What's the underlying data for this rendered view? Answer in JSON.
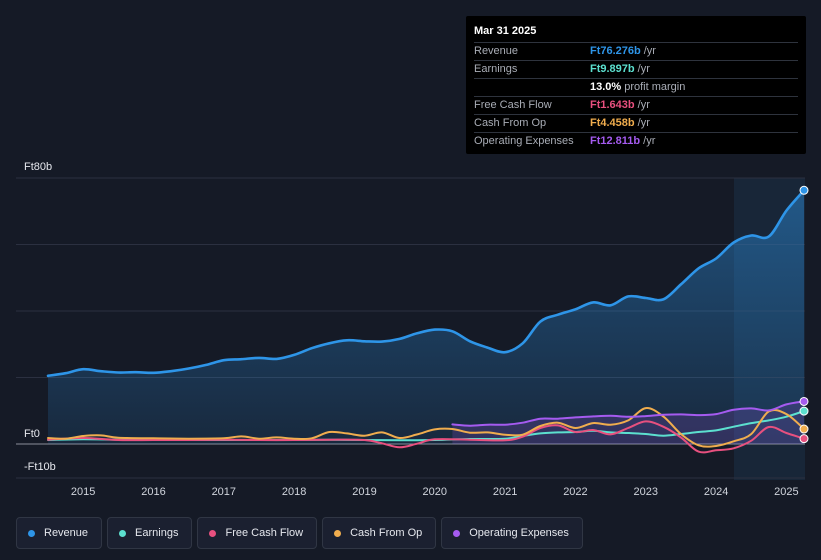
{
  "tooltip": {
    "date": "Mar 31 2025",
    "rows": [
      {
        "label": "Revenue",
        "value": "Ft76.276b",
        "unit": "/yr",
        "color": "#2e95e8"
      },
      {
        "label": "Earnings",
        "value": "Ft9.897b",
        "unit": "/yr",
        "color": "#5ce0cf"
      },
      {
        "label": "",
        "value": "13.0%",
        "unit": "profit margin",
        "color": "#ffffff"
      },
      {
        "label": "Free Cash Flow",
        "value": "Ft1.643b",
        "unit": "/yr",
        "color": "#e8507f"
      },
      {
        "label": "Cash From Op",
        "value": "Ft4.458b",
        "unit": "/yr",
        "color": "#f0ad4e"
      },
      {
        "label": "Operating Expenses",
        "value": "Ft12.811b",
        "unit": "/yr",
        "color": "#a55bf0"
      }
    ]
  },
  "chart_data": {
    "type": "line",
    "ylabels": {
      "top": "Ft80b",
      "zero": "Ft0",
      "bottom": "-Ft10b"
    },
    "ylim": [
      -10,
      80
    ],
    "xlim": [
      2014.5,
      2025.25
    ],
    "xticks": [
      "2015",
      "2016",
      "2017",
      "2018",
      "2019",
      "2020",
      "2021",
      "2022",
      "2023",
      "2024",
      "2025"
    ],
    "series": [
      {
        "name": "Revenue",
        "color": "#2e95e8",
        "fill": true,
        "points": [
          [
            2014.5,
            20.5
          ],
          [
            2014.75,
            21.3
          ],
          [
            2015.0,
            22.5
          ],
          [
            2015.25,
            21.9
          ],
          [
            2015.5,
            21.5
          ],
          [
            2015.75,
            21.6
          ],
          [
            2016.0,
            21.4
          ],
          [
            2016.25,
            21.9
          ],
          [
            2016.5,
            22.7
          ],
          [
            2016.75,
            23.8
          ],
          [
            2017.0,
            25.2
          ],
          [
            2017.25,
            25.5
          ],
          [
            2017.5,
            25.9
          ],
          [
            2017.75,
            25.6
          ],
          [
            2018.0,
            26.8
          ],
          [
            2018.25,
            28.8
          ],
          [
            2018.5,
            30.3
          ],
          [
            2018.75,
            31.2
          ],
          [
            2019.0,
            30.9
          ],
          [
            2019.25,
            30.8
          ],
          [
            2019.5,
            31.6
          ],
          [
            2019.75,
            33.3
          ],
          [
            2020.0,
            34.4
          ],
          [
            2020.25,
            33.9
          ],
          [
            2020.5,
            30.9
          ],
          [
            2020.75,
            29.0
          ],
          [
            2021.0,
            27.6
          ],
          [
            2021.25,
            30.3
          ],
          [
            2021.5,
            36.8
          ],
          [
            2021.75,
            38.9
          ],
          [
            2022.0,
            40.5
          ],
          [
            2022.25,
            42.6
          ],
          [
            2022.5,
            41.7
          ],
          [
            2022.75,
            44.4
          ],
          [
            2023.0,
            43.9
          ],
          [
            2023.25,
            43.5
          ],
          [
            2023.5,
            48.0
          ],
          [
            2023.75,
            52.8
          ],
          [
            2024.0,
            55.8
          ],
          [
            2024.25,
            60.6
          ],
          [
            2024.5,
            62.7
          ],
          [
            2024.75,
            62.4
          ],
          [
            2025.0,
            70.2
          ],
          [
            2025.25,
            76.3
          ]
        ]
      },
      {
        "name": "Earnings",
        "color": "#5ce0cf",
        "fill": false,
        "points": [
          [
            2014.5,
            1.2
          ],
          [
            2015.0,
            1.4
          ],
          [
            2015.5,
            1.3
          ],
          [
            2016.0,
            1.2
          ],
          [
            2016.5,
            1.2
          ],
          [
            2017.0,
            1.2
          ],
          [
            2017.5,
            1.2
          ],
          [
            2018.0,
            1.2
          ],
          [
            2018.5,
            1.3
          ],
          [
            2019.0,
            1.2
          ],
          [
            2019.5,
            1.1
          ],
          [
            2020.0,
            1.2
          ],
          [
            2020.5,
            1.5
          ],
          [
            2021.0,
            1.6
          ],
          [
            2021.25,
            2.4
          ],
          [
            2021.5,
            3.2
          ],
          [
            2021.75,
            3.5
          ],
          [
            2022.0,
            3.6
          ],
          [
            2022.25,
            4.0
          ],
          [
            2022.5,
            3.5
          ],
          [
            2022.75,
            3.3
          ],
          [
            2023.0,
            3.0
          ],
          [
            2023.25,
            2.5
          ],
          [
            2023.5,
            3.0
          ],
          [
            2023.75,
            3.6
          ],
          [
            2024.0,
            4.1
          ],
          [
            2024.25,
            5.2
          ],
          [
            2024.5,
            6.3
          ],
          [
            2024.75,
            7.1
          ],
          [
            2025.0,
            8.2
          ],
          [
            2025.25,
            9.9
          ]
        ]
      },
      {
        "name": "Free Cash Flow",
        "color": "#e8507f",
        "fill": false,
        "points": [
          [
            2014.5,
            1.3
          ],
          [
            2015.0,
            1.8
          ],
          [
            2015.5,
            1.2
          ],
          [
            2016.0,
            1.2
          ],
          [
            2016.5,
            1.2
          ],
          [
            2017.0,
            1.3
          ],
          [
            2017.5,
            1.2
          ],
          [
            2018.0,
            1.2
          ],
          [
            2018.5,
            1.3
          ],
          [
            2019.0,
            1.2
          ],
          [
            2019.25,
            0.2
          ],
          [
            2019.5,
            -1.0
          ],
          [
            2019.75,
            0.1
          ],
          [
            2020.0,
            1.4
          ],
          [
            2020.5,
            1.3
          ],
          [
            2021.0,
            1.1
          ],
          [
            2021.25,
            2.2
          ],
          [
            2021.5,
            4.8
          ],
          [
            2021.75,
            5.6
          ],
          [
            2022.0,
            3.6
          ],
          [
            2022.25,
            4.2
          ],
          [
            2022.5,
            2.9
          ],
          [
            2022.75,
            4.8
          ],
          [
            2023.0,
            6.8
          ],
          [
            2023.25,
            5.2
          ],
          [
            2023.5,
            2.0
          ],
          [
            2023.75,
            -2.3
          ],
          [
            2024.0,
            -1.9
          ],
          [
            2024.25,
            -1.3
          ],
          [
            2024.5,
            1.0
          ],
          [
            2024.75,
            5.1
          ],
          [
            2025.0,
            3.3
          ],
          [
            2025.25,
            1.6
          ]
        ]
      },
      {
        "name": "Cash From Op",
        "color": "#f0ad4e",
        "fill": false,
        "points": [
          [
            2014.5,
            1.8
          ],
          [
            2014.75,
            1.6
          ],
          [
            2015.0,
            2.4
          ],
          [
            2015.25,
            2.6
          ],
          [
            2015.5,
            1.9
          ],
          [
            2016.0,
            1.7
          ],
          [
            2016.5,
            1.6
          ],
          [
            2017.0,
            1.7
          ],
          [
            2017.25,
            2.3
          ],
          [
            2017.5,
            1.6
          ],
          [
            2017.75,
            2.0
          ],
          [
            2018.0,
            1.6
          ],
          [
            2018.25,
            1.7
          ],
          [
            2018.5,
            3.6
          ],
          [
            2018.75,
            3.2
          ],
          [
            2019.0,
            2.5
          ],
          [
            2019.25,
            3.5
          ],
          [
            2019.5,
            1.8
          ],
          [
            2019.75,
            2.9
          ],
          [
            2020.0,
            4.4
          ],
          [
            2020.25,
            4.5
          ],
          [
            2020.5,
            3.4
          ],
          [
            2020.75,
            3.5
          ],
          [
            2021.0,
            2.8
          ],
          [
            2021.25,
            2.8
          ],
          [
            2021.5,
            5.4
          ],
          [
            2021.75,
            6.4
          ],
          [
            2022.0,
            4.8
          ],
          [
            2022.25,
            6.3
          ],
          [
            2022.5,
            5.8
          ],
          [
            2022.75,
            7.1
          ],
          [
            2023.0,
            10.8
          ],
          [
            2023.25,
            8.3
          ],
          [
            2023.5,
            3.0
          ],
          [
            2023.75,
            -0.4
          ],
          [
            2024.0,
            -0.6
          ],
          [
            2024.25,
            0.8
          ],
          [
            2024.5,
            3.0
          ],
          [
            2024.75,
            9.8
          ],
          [
            2025.0,
            9.0
          ],
          [
            2025.25,
            4.5
          ]
        ]
      },
      {
        "name": "Operating Expenses",
        "color": "#a55bf0",
        "fill": true,
        "points": [
          [
            2020.25,
            5.9
          ],
          [
            2020.5,
            5.5
          ],
          [
            2020.75,
            5.8
          ],
          [
            2021.0,
            5.8
          ],
          [
            2021.25,
            6.4
          ],
          [
            2021.5,
            7.6
          ],
          [
            2021.75,
            7.6
          ],
          [
            2022.0,
            8.0
          ],
          [
            2022.25,
            8.3
          ],
          [
            2022.5,
            8.5
          ],
          [
            2022.75,
            8.2
          ],
          [
            2023.0,
            8.4
          ],
          [
            2023.25,
            8.8
          ],
          [
            2023.5,
            8.9
          ],
          [
            2023.75,
            8.7
          ],
          [
            2024.0,
            9.0
          ],
          [
            2024.25,
            10.3
          ],
          [
            2024.5,
            10.7
          ],
          [
            2024.75,
            10.1
          ],
          [
            2025.0,
            11.9
          ],
          [
            2025.25,
            12.8
          ]
        ]
      }
    ]
  },
  "legend": [
    {
      "name": "Revenue",
      "color": "#2e95e8"
    },
    {
      "name": "Earnings",
      "color": "#5ce0cf"
    },
    {
      "name": "Free Cash Flow",
      "color": "#e8507f"
    },
    {
      "name": "Cash From Op",
      "color": "#f0ad4e"
    },
    {
      "name": "Operating Expenses",
      "color": "#a55bf0"
    }
  ]
}
